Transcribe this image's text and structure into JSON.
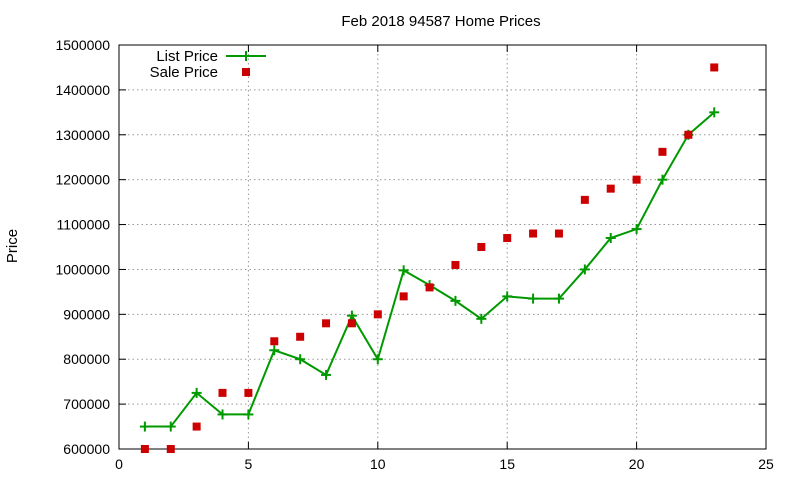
{
  "chart_data": {
    "type": "line",
    "title": "Feb 2018 94587 Home Prices",
    "xlabel": "",
    "ylabel": "Price",
    "xlim": [
      0,
      25
    ],
    "ylim": [
      600000,
      1500000
    ],
    "x_ticks": [
      0,
      5,
      10,
      15,
      20,
      25
    ],
    "y_ticks": [
      600000,
      700000,
      800000,
      900000,
      1000000,
      1100000,
      1200000,
      1300000,
      1400000,
      1500000
    ],
    "grid": true,
    "legend_position": "top-left",
    "series": [
      {
        "name": "List Price",
        "style": "line-plus",
        "color": "#009900",
        "x": [
          1,
          2,
          3,
          4,
          5,
          6,
          7,
          8,
          9,
          10,
          11,
          12,
          13,
          14,
          15,
          16,
          17,
          18,
          19,
          20,
          21,
          22,
          23
        ],
        "y": [
          650000,
          650000,
          725000,
          677000,
          677000,
          820000,
          800000,
          765000,
          897000,
          800000,
          998000,
          965000,
          930000,
          890000,
          940000,
          935000,
          935000,
          1000000,
          1070000,
          1090000,
          1200000,
          1300000,
          1350000
        ]
      },
      {
        "name": "Sale Price",
        "style": "square",
        "color": "#cc0000",
        "x": [
          1,
          2,
          3,
          4,
          5,
          6,
          7,
          8,
          9,
          10,
          11,
          12,
          13,
          14,
          15,
          16,
          17,
          18,
          19,
          20,
          21,
          22,
          23
        ],
        "y": [
          600000,
          600000,
          650000,
          725000,
          725000,
          840000,
          850000,
          880000,
          880000,
          900000,
          940000,
          960000,
          1010000,
          1050000,
          1070000,
          1080000,
          1080000,
          1155000,
          1180000,
          1200000,
          1262000,
          1300000,
          1450000
        ]
      }
    ]
  }
}
